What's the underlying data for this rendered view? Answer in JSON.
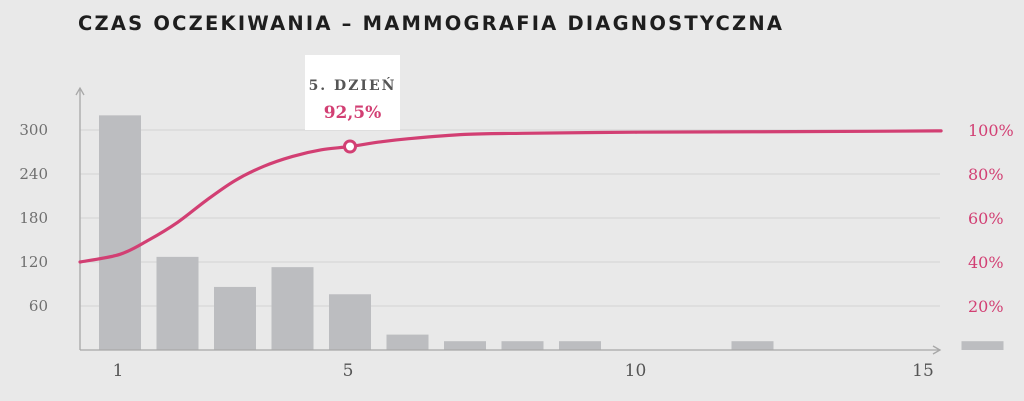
{
  "chart_data": {
    "type": "bar",
    "title": "CZAS OCZEKIWANIA – MAMMOGRAFIA DIAGNOSTYCZNA",
    "categories": [
      1,
      2,
      3,
      4,
      5,
      6,
      7,
      8,
      9,
      10,
      11,
      12,
      13,
      14,
      15,
      16
    ],
    "values": [
      320,
      127,
      86,
      113,
      76,
      21,
      12,
      12,
      12,
      0,
      0,
      12,
      0,
      0,
      0,
      12
    ],
    "x_ticks": [
      "1",
      "5",
      "10",
      "15"
    ],
    "x_tick_values": [
      1,
      5,
      10,
      15
    ],
    "y_left_ticks": [
      "60",
      "120",
      "180",
      "240",
      "300"
    ],
    "y_left_tick_values": [
      60,
      120,
      180,
      240,
      300
    ],
    "ylim_left": [
      0,
      350
    ],
    "y_right_ticks": [
      "20%",
      "40%",
      "60%",
      "80%",
      "100%"
    ],
    "y_right_tick_values": [
      20,
      40,
      60,
      80,
      100
    ],
    "ylim_right": [
      0,
      110
    ],
    "line": {
      "type": "line",
      "axis": "right",
      "x": [
        0.7,
        1.0,
        1.5,
        2.0,
        2.5,
        3.0,
        3.5,
        4.0,
        4.5,
        5.0,
        5.5,
        6.0,
        7.0,
        8.0,
        10.0,
        12.0,
        14.0,
        16.0,
        16.5
      ],
      "y": [
        40.0,
        43.5,
        50.0,
        58.0,
        68.0,
        77.0,
        83.5,
        88.0,
        91.0,
        92.5,
        94.5,
        96.0,
        98.0,
        98.5,
        99.0,
        99.2,
        99.4,
        99.6,
        99.6
      ]
    },
    "highlight": {
      "x": 5,
      "y": 92.5,
      "day_label": "5. DZIEŃ",
      "value_label": "92,5%"
    },
    "grid": true
  },
  "colors": {
    "background": "#e9e9e9",
    "bar": "#bcbdc0",
    "line": "#d23f73",
    "grid": "#d4d4d4",
    "axis": "#a8a8a8",
    "callout_box": "#ffffff"
  }
}
